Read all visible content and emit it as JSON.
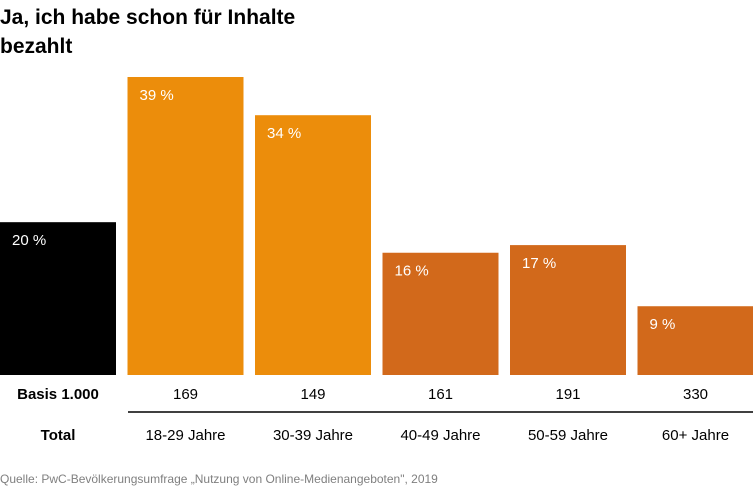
{
  "title": "Ja, ich habe schon für Inhalte bezahlt",
  "source": "Quelle: PwC-Bevölkerungsumfrage „Nutzung von Online-Medienangeboten\", 2019",
  "colors": {
    "total": "#000000",
    "young": "#ec8d0b",
    "old": "#d2691b",
    "value_label": "#ffffff",
    "source": "#7f7f7f",
    "axis_line": "#000000"
  },
  "chart_data": {
    "type": "bar",
    "title": "Ja, ich habe schon für Inhalte bezahlt",
    "categories": [
      "Total",
      "18-29 Jahre",
      "30-39 Jahre",
      "40-49 Jahre",
      "50-59 Jahre",
      "60+ Jahre"
    ],
    "values": [
      20,
      39,
      34,
      16,
      17,
      9
    ],
    "value_labels": [
      "20 %",
      "39 %",
      "34 %",
      "16 %",
      "17 %",
      "9 %"
    ],
    "basis": [
      "Basis 1.000",
      "169",
      "149",
      "161",
      "191",
      "330"
    ],
    "bar_colors": [
      "#000000",
      "#ec8d0b",
      "#ec8d0b",
      "#d2691b",
      "#d2691b",
      "#d2691b"
    ],
    "unit": "%",
    "ylim": [
      0,
      39
    ],
    "grid": false,
    "legend": "none"
  }
}
